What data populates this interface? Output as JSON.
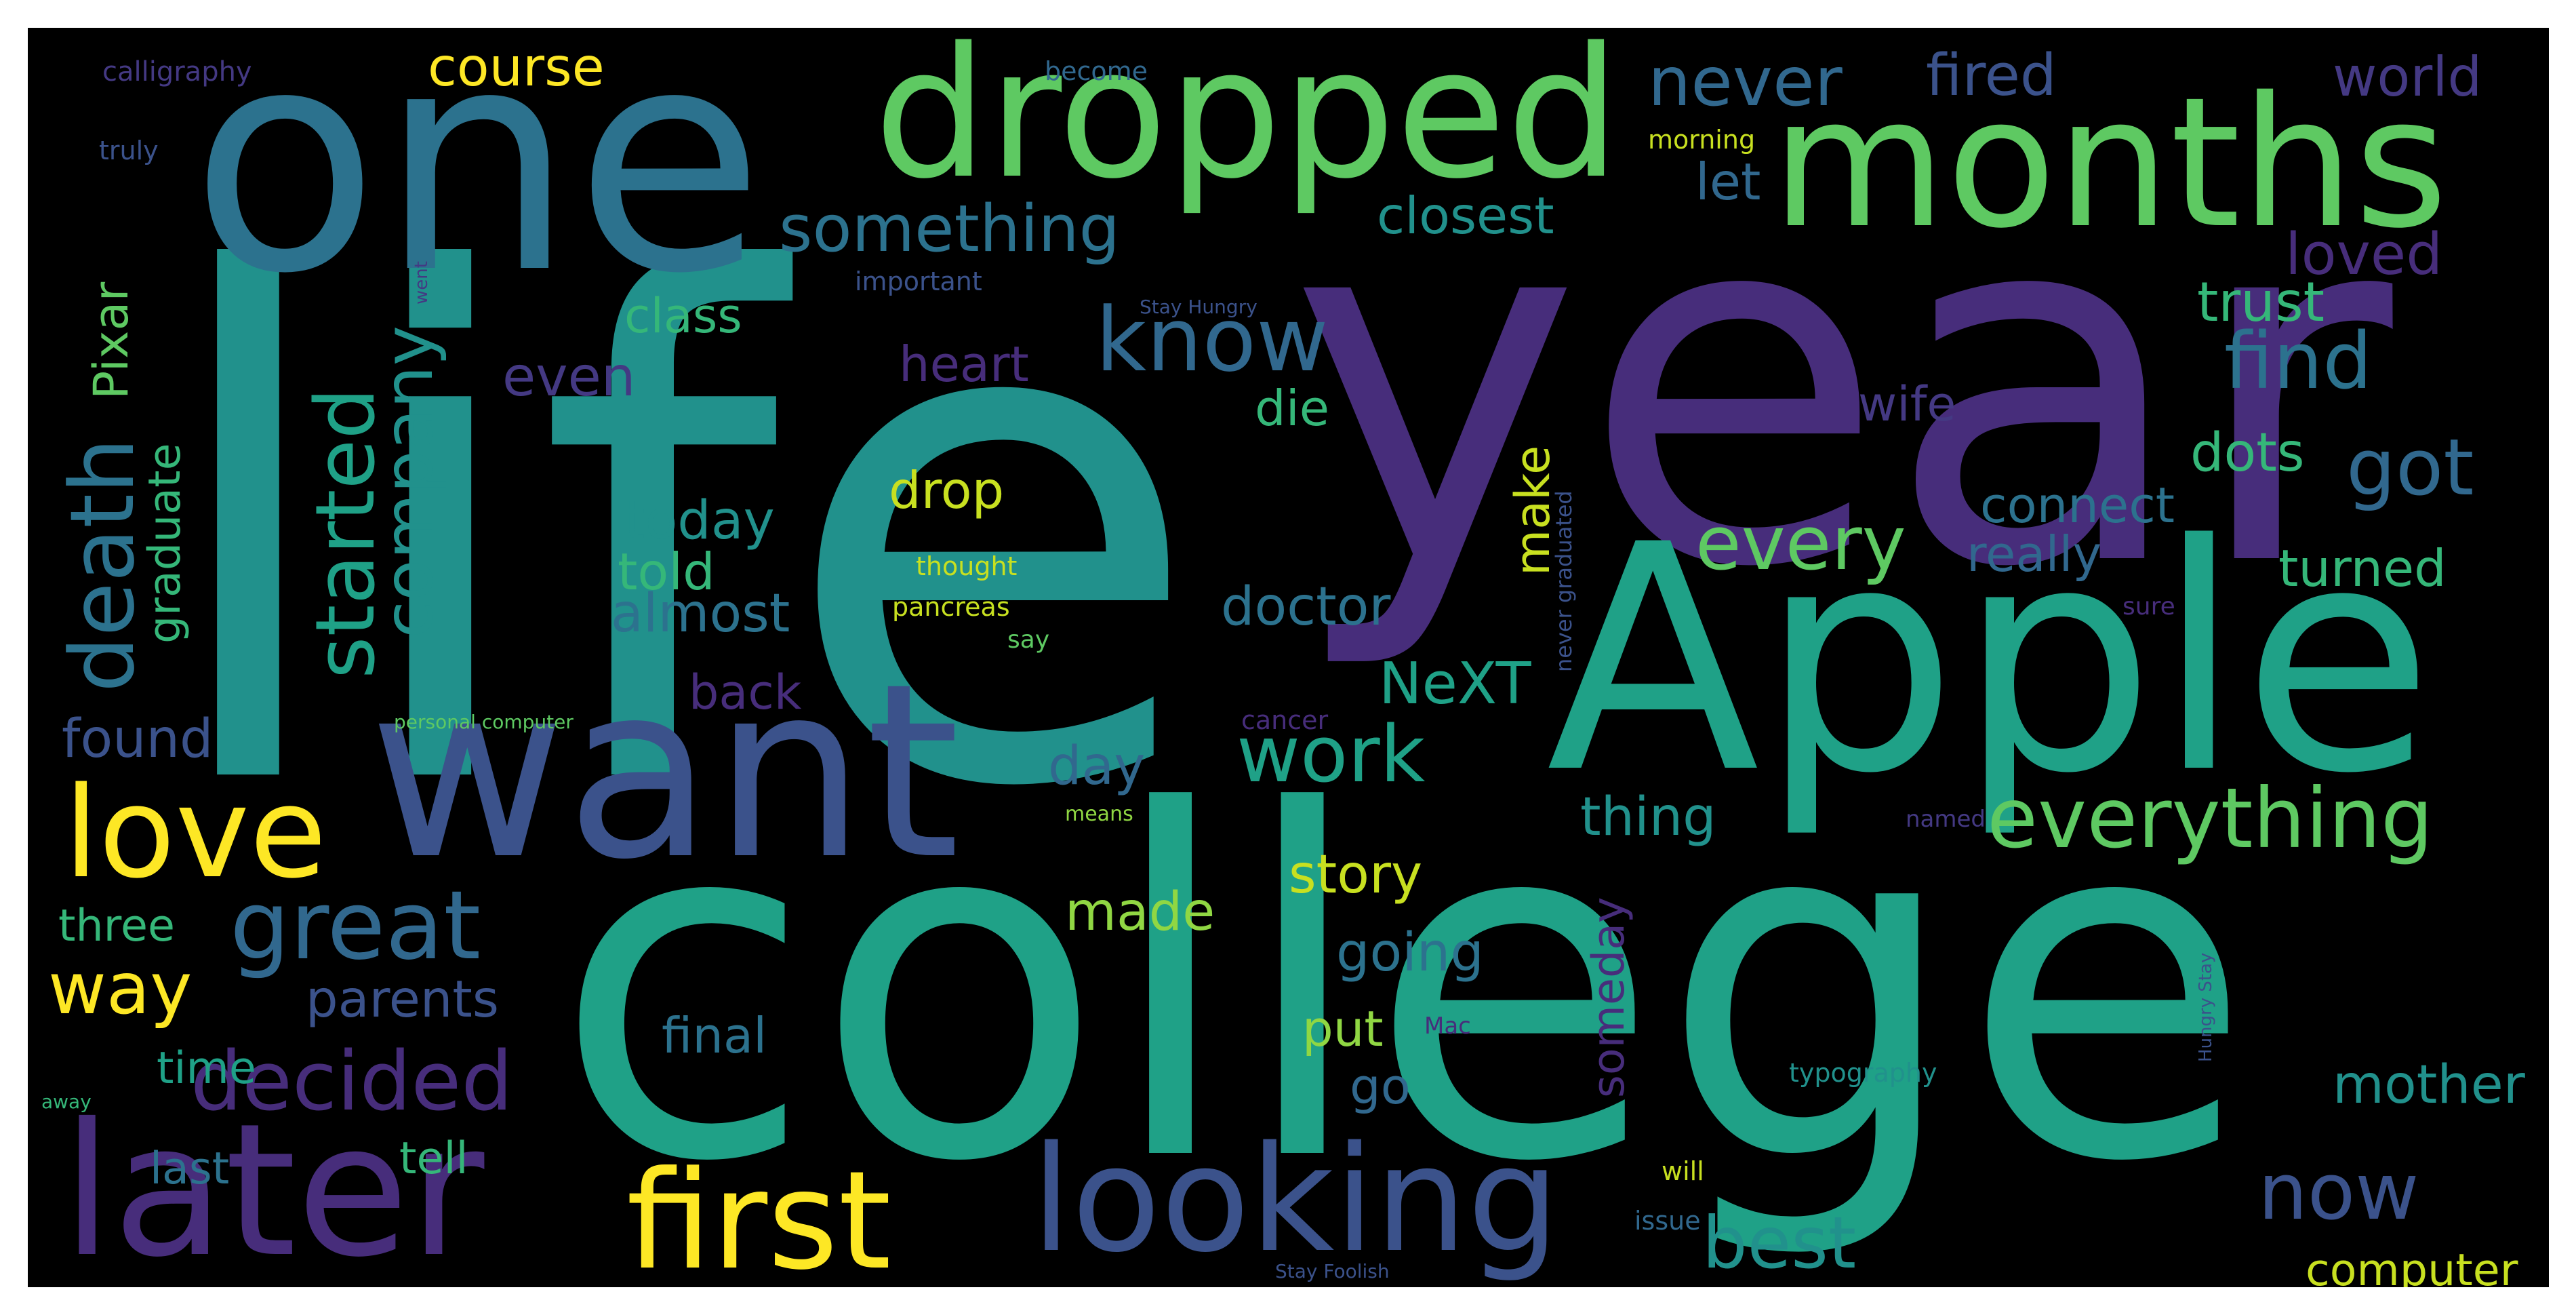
{
  "palette": {
    "dark_purple": "#472d7b",
    "purple": "#443983",
    "indigo": "#3b528b",
    "blue": "#31688e",
    "teal_blue": "#2c728e",
    "teal": "#21918c",
    "teal_green": "#1fa187",
    "green": "#35b779",
    "light_green": "#5ec962",
    "yellow_green": "#90d743",
    "yellow": "#c8e020",
    "bright_yellow": "#fde725"
  },
  "words": [
    {
      "text": "life",
      "color": "#21918c"
    },
    {
      "text": "year",
      "color": "#472d7b"
    },
    {
      "text": "college",
      "color": "#1fa187"
    },
    {
      "text": "one",
      "color": "#2c728e"
    },
    {
      "text": "Apple",
      "color": "#1fa187"
    },
    {
      "text": "want",
      "color": "#3b528b"
    },
    {
      "text": "dropped",
      "color": "#5ec962"
    },
    {
      "text": "months",
      "color": "#5ec962"
    },
    {
      "text": "later",
      "color": "#472d7b"
    },
    {
      "text": "looking",
      "color": "#3b528b"
    },
    {
      "text": "first",
      "color": "#fde725"
    },
    {
      "text": "love",
      "color": "#fde725"
    },
    {
      "text": "everything",
      "color": "#5ec962"
    },
    {
      "text": "great",
      "color": "#31688e"
    },
    {
      "text": "decided",
      "color": "#472d7b"
    },
    {
      "text": "know",
      "color": "#31688e"
    },
    {
      "text": "death",
      "color": "#2c728e"
    },
    {
      "text": "started",
      "color": "#1fa187"
    },
    {
      "text": "find",
      "color": "#2c728e"
    },
    {
      "text": "got",
      "color": "#31688e"
    },
    {
      "text": "now",
      "color": "#3b528b"
    },
    {
      "text": "best",
      "color": "#21918c"
    },
    {
      "text": "never",
      "color": "#31688e"
    },
    {
      "text": "something",
      "color": "#2c728e"
    },
    {
      "text": "work",
      "color": "#1fa187"
    },
    {
      "text": "every",
      "color": "#5ec962"
    },
    {
      "text": "way",
      "color": "#fde725"
    },
    {
      "text": "company",
      "color": "#21918c"
    },
    {
      "text": "graduate",
      "color": "#35b779"
    },
    {
      "text": "Pixar",
      "color": "#5ec962"
    },
    {
      "text": "course",
      "color": "#fde725"
    },
    {
      "text": "fired",
      "color": "#3b528b"
    },
    {
      "text": "world",
      "color": "#443983"
    },
    {
      "text": "closest",
      "color": "#21918c"
    },
    {
      "text": "let",
      "color": "#31688e"
    },
    {
      "text": "loved",
      "color": "#472d7b"
    },
    {
      "text": "trust",
      "color": "#35b779"
    },
    {
      "text": "class",
      "color": "#35b779"
    },
    {
      "text": "heart",
      "color": "#472d7b"
    },
    {
      "text": "even",
      "color": "#443983"
    },
    {
      "text": "die",
      "color": "#35b779"
    },
    {
      "text": "wife",
      "color": "#443983"
    },
    {
      "text": "dots",
      "color": "#35b779"
    },
    {
      "text": "make",
      "color": "#c8e020"
    },
    {
      "text": "today",
      "color": "#21918c"
    },
    {
      "text": "drop",
      "color": "#c8e020"
    },
    {
      "text": "connect",
      "color": "#2c728e"
    },
    {
      "text": "told",
      "color": "#35b779"
    },
    {
      "text": "almost",
      "color": "#2c728e"
    },
    {
      "text": "really",
      "color": "#31688e"
    },
    {
      "text": "turned",
      "color": "#35b779"
    },
    {
      "text": "doctor",
      "color": "#2c728e"
    },
    {
      "text": "NeXT",
      "color": "#1fa187"
    },
    {
      "text": "back",
      "color": "#472d7b"
    },
    {
      "text": "found",
      "color": "#3b528b"
    },
    {
      "text": "day",
      "color": "#31688e"
    },
    {
      "text": "thing",
      "color": "#21918c"
    },
    {
      "text": "story",
      "color": "#c8e020"
    },
    {
      "text": "made",
      "color": "#90d743"
    },
    {
      "text": "three",
      "color": "#35b779"
    },
    {
      "text": "going",
      "color": "#2c728e"
    },
    {
      "text": "parents",
      "color": "#3b528b"
    },
    {
      "text": "someday",
      "color": "#472d7b"
    },
    {
      "text": "final",
      "color": "#2c728e"
    },
    {
      "text": "put",
      "color": "#90d743"
    },
    {
      "text": "time",
      "color": "#1fa187"
    },
    {
      "text": "go",
      "color": "#31688e"
    },
    {
      "text": "mother",
      "color": "#21918c"
    },
    {
      "text": "tell",
      "color": "#35b779"
    },
    {
      "text": "last",
      "color": "#2c728e"
    },
    {
      "text": "computer",
      "color": "#c8e020"
    },
    {
      "text": "calligraphy",
      "color": "#443983"
    },
    {
      "text": "become",
      "color": "#31688e"
    },
    {
      "text": "truly",
      "color": "#3b528b"
    },
    {
      "text": "morning",
      "color": "#c8e020"
    },
    {
      "text": "important",
      "color": "#3b528b"
    },
    {
      "text": "Stay Hungry",
      "color": "#3b528b"
    },
    {
      "text": "went",
      "color": "#443983"
    },
    {
      "text": "never graduated",
      "color": "#3b528b"
    },
    {
      "text": "thought",
      "color": "#c8e020"
    },
    {
      "text": "pancreas",
      "color": "#c8e020"
    },
    {
      "text": "say",
      "color": "#5ec962"
    },
    {
      "text": "sure",
      "color": "#472d7b"
    },
    {
      "text": "personal computer",
      "color": "#5ec962"
    },
    {
      "text": "cancer",
      "color": "#472d7b"
    },
    {
      "text": "means",
      "color": "#90d743"
    },
    {
      "text": "named",
      "color": "#443983"
    },
    {
      "text": "Mac",
      "color": "#472d7b"
    },
    {
      "text": "typography",
      "color": "#21918c"
    },
    {
      "text": "Hungry Stay",
      "color": "#3b528b"
    },
    {
      "text": "away",
      "color": "#35b779"
    },
    {
      "text": "will",
      "color": "#c8e020"
    },
    {
      "text": "issue",
      "color": "#31688e"
    },
    {
      "text": "Stay Foolish",
      "color": "#3b528b"
    }
  ]
}
